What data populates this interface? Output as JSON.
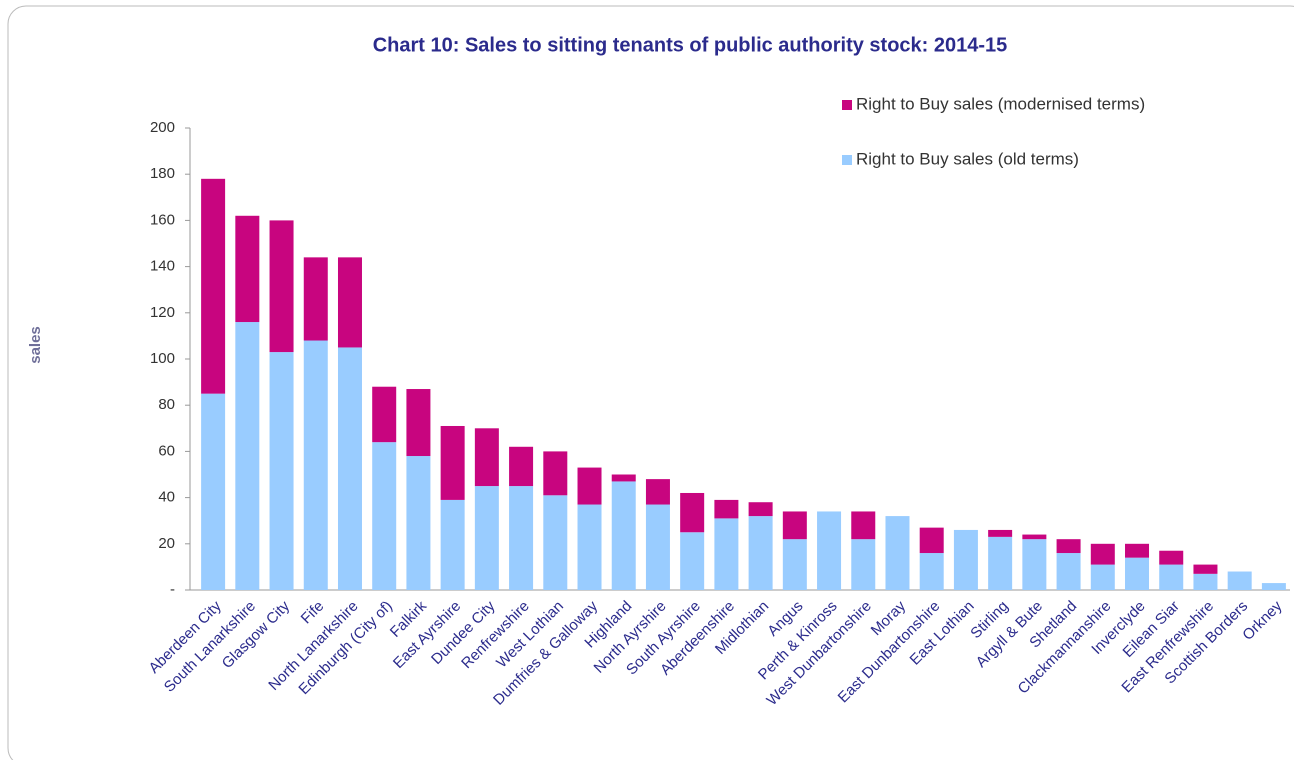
{
  "chart_data": {
    "type": "stacked_bar",
    "title": "Chart 10: Sales to sitting tenants of public authority stock: 2014-15",
    "y_label": "sales",
    "categories": [
      "Aberdeen City",
      "South Lanarkshire",
      "Glasgow City",
      "Fife",
      "North Lanarkshire",
      "Edinburgh (City of)",
      "Falkirk",
      "East Ayrshire",
      "Dundee City",
      "Renfrewshire",
      "West Lothian",
      "Dumfries & Galloway",
      "Highland",
      "North Ayrshire",
      "South Ayrshire",
      "Aberdeenshire",
      "Midlothian",
      "Angus",
      "Perth & Kinross",
      "West Dunbartonshire",
      "Moray",
      "East Dunbartonshire",
      "East Lothian",
      "Stirling",
      "Argyll & Bute",
      "Shetland",
      "Clackmannanshire",
      "Inverclyde",
      "Eilean Siar",
      "East Renfrewshire",
      "Scottish Borders",
      "Orkney"
    ],
    "series": [
      {
        "name": "Right to Buy sales (old terms)",
        "color": "#99ccff",
        "values": [
          85,
          116,
          103,
          108,
          105,
          64,
          58,
          39,
          45,
          45,
          41,
          37,
          47,
          37,
          25,
          31,
          32,
          22,
          34,
          22,
          32,
          16,
          26,
          23,
          22,
          16,
          11,
          14,
          11,
          7,
          8,
          3
        ]
      },
      {
        "name": "Right to Buy sales (modernised terms)",
        "color": "#c8057f",
        "values": [
          93,
          46,
          57,
          36,
          39,
          24,
          29,
          32,
          25,
          17,
          19,
          16,
          3,
          11,
          17,
          8,
          6,
          12,
          0,
          12,
          0,
          11,
          0,
          3,
          2,
          6,
          9,
          6,
          6,
          4,
          0,
          0
        ]
      }
    ],
    "ylim": [
      0,
      200
    ],
    "yticks": [
      {
        "value": 0,
        "label": "-"
      },
      20,
      40,
      60,
      80,
      100,
      120,
      140,
      160,
      180,
      200
    ],
    "legend": "top-right"
  }
}
